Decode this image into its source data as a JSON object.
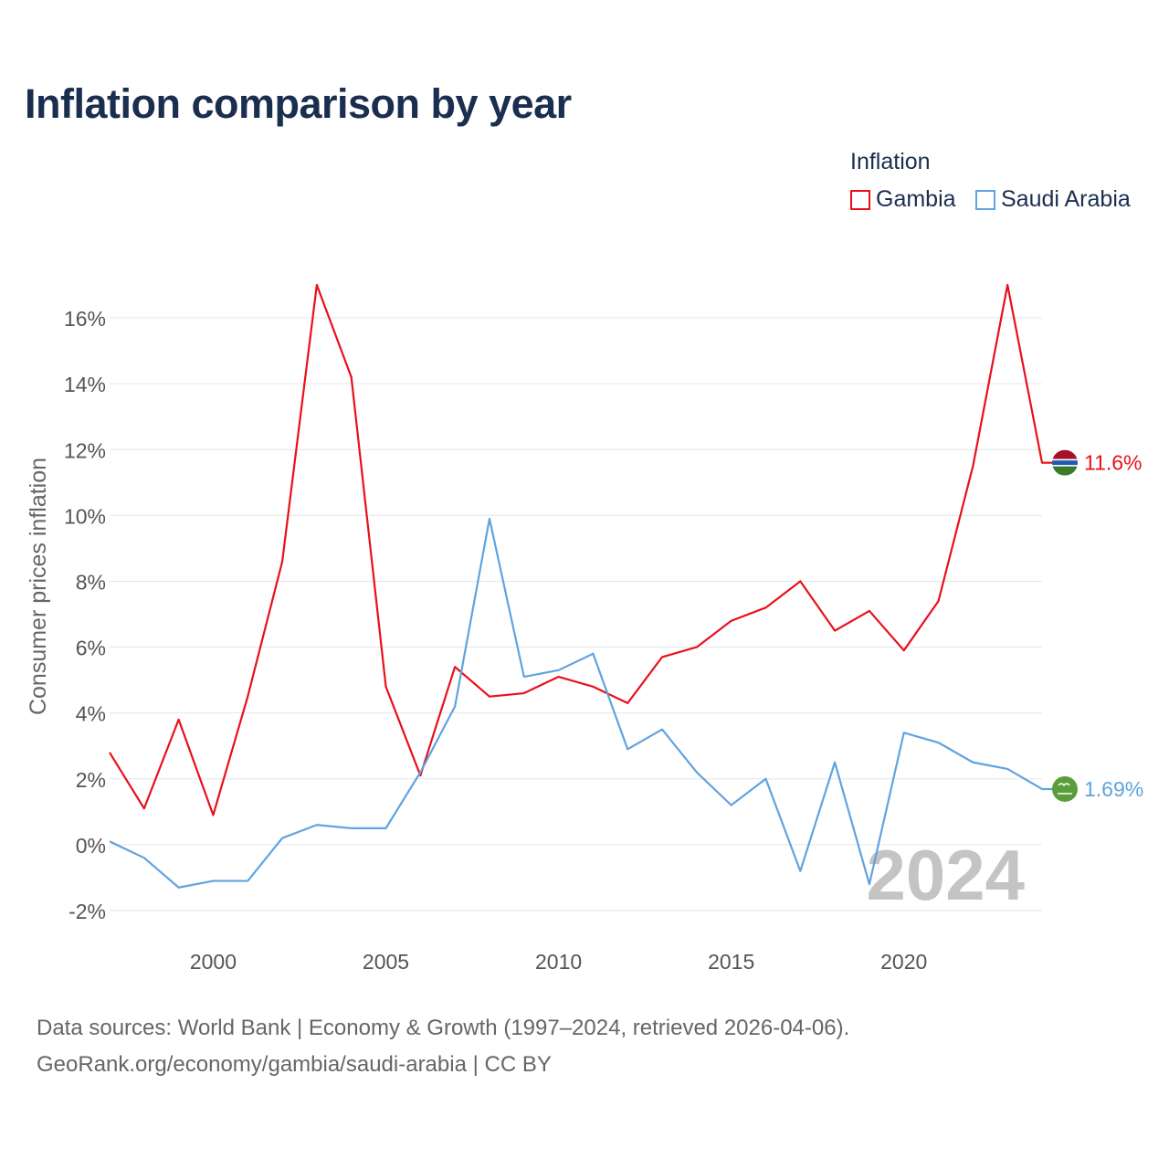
{
  "title": "Inflation comparison by year",
  "legend": {
    "title": "Inflation",
    "items": [
      {
        "label": "Gambia",
        "color": "#e8101a"
      },
      {
        "label": "Saudi Arabia",
        "color": "#5fa3e0"
      }
    ]
  },
  "watermark_year": "2024",
  "footer": {
    "line1": "Data sources: World Bank | Economy & Growth (1997–2024, retrieved 2026-04-06).",
    "line2": "GeoRank.org/economy/gambia/saudi-arabia | CC BY"
  },
  "chart_data": {
    "type": "line",
    "title": "Inflation comparison by year",
    "xlabel": "",
    "ylabel": "Consumer prices inflation",
    "x": [
      1997,
      1998,
      1999,
      2000,
      2001,
      2002,
      2003,
      2004,
      2005,
      2006,
      2007,
      2008,
      2009,
      2010,
      2011,
      2012,
      2013,
      2014,
      2015,
      2016,
      2017,
      2018,
      2019,
      2020,
      2021,
      2022,
      2023,
      2024
    ],
    "xlim": [
      1997,
      2024
    ],
    "ylim": [
      -2,
      17
    ],
    "x_ticks": [
      2000,
      2005,
      2010,
      2015,
      2020
    ],
    "x_tick_labels": [
      "2000",
      "2005",
      "2010",
      "2015",
      "2020"
    ],
    "y_ticks": [
      -2,
      0,
      2,
      4,
      6,
      8,
      10,
      12,
      14,
      16
    ],
    "y_tick_labels": [
      "-2%",
      "0%",
      "2%",
      "4%",
      "6%",
      "8%",
      "10%",
      "12%",
      "14%",
      "16%"
    ],
    "grid": true,
    "legend_position": "top-right",
    "series": [
      {
        "name": "Gambia",
        "color": "#e8101a",
        "end_label": "11.6%",
        "flag": "gambia-flag",
        "values": [
          2.8,
          1.1,
          3.8,
          0.9,
          4.5,
          8.6,
          17.0,
          14.2,
          4.8,
          2.1,
          5.4,
          4.5,
          4.6,
          5.1,
          4.8,
          4.3,
          5.7,
          6.0,
          6.8,
          7.2,
          8.0,
          6.5,
          7.1,
          5.9,
          7.4,
          11.5,
          17.0,
          11.6
        ]
      },
      {
        "name": "Saudi Arabia",
        "color": "#5fa3e0",
        "end_label": "1.69%",
        "flag": "saudi-arabia-flag",
        "values": [
          0.1,
          -0.4,
          -1.3,
          -1.1,
          -1.1,
          0.2,
          0.6,
          0.5,
          0.5,
          2.2,
          4.2,
          9.9,
          5.1,
          5.3,
          5.8,
          2.9,
          3.5,
          2.2,
          1.2,
          2.0,
          -0.8,
          2.5,
          -1.2,
          3.4,
          3.1,
          2.5,
          2.3,
          1.69
        ]
      }
    ]
  }
}
